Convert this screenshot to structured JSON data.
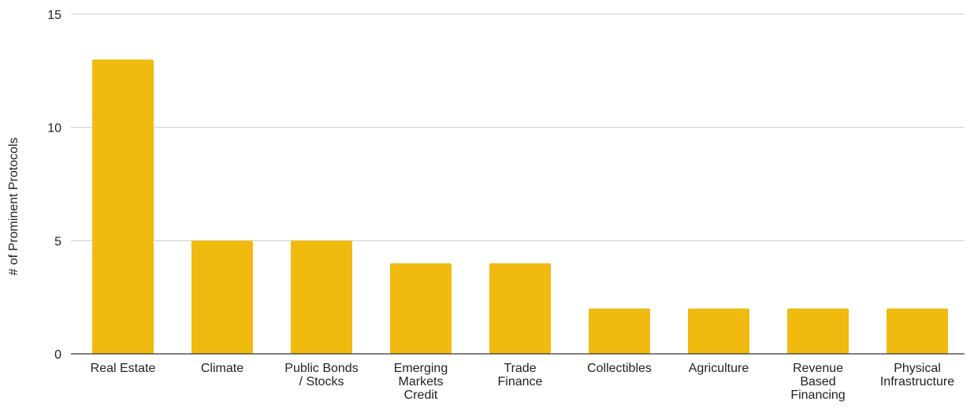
{
  "chart_data": {
    "type": "bar",
    "title": "",
    "xlabel": "",
    "ylabel": "# of Prominent Protocols",
    "ylim": [
      0,
      15
    ],
    "yticks": [
      0,
      5,
      10,
      15
    ],
    "grid": true,
    "legend": "none",
    "bar_color": "#F0BA11",
    "categories": [
      [
        "Real Estate"
      ],
      [
        "Climate"
      ],
      [
        "Public Bonds",
        "/ Stocks"
      ],
      [
        "Emerging",
        "Markets",
        "Credit"
      ],
      [
        "Trade",
        "Finance"
      ],
      [
        "Collectibles"
      ],
      [
        "Agriculture"
      ],
      [
        "Revenue",
        "Based",
        "Financing"
      ],
      [
        "Physical",
        "Infrastructure"
      ]
    ],
    "values": [
      13,
      5,
      5,
      4,
      4,
      2,
      2,
      2,
      2
    ]
  }
}
